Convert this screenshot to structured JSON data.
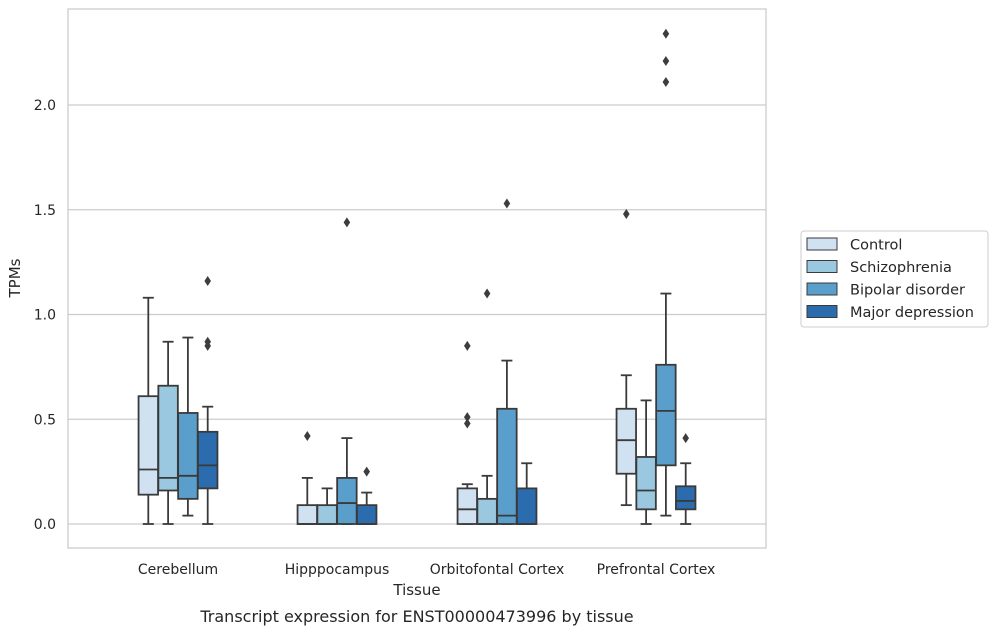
{
  "caption": "Transcript expression for ENST00000473996 by tissue",
  "chart_data": {
    "type": "box",
    "title": "",
    "xlabel": "Tissue",
    "ylabel": "TPMs",
    "ylim": [
      -0.11,
      2.47
    ],
    "yticks": [
      "0.0",
      "0.5",
      "1.0",
      "1.5",
      "2.0"
    ],
    "ytick_values": [
      0.0,
      0.5,
      1.0,
      1.5,
      2.0
    ],
    "grid": "horizontal",
    "legend_position": "right",
    "categories": [
      "Cerebellum",
      "Hipppocampus",
      "Orbitofontal Cortex",
      "Prefrontal Cortex"
    ],
    "series": [
      {
        "name": "Control",
        "color": "#d0e2f2",
        "boxes": [
          {
            "whislo": 0.0,
            "q1": 0.14,
            "med": 0.26,
            "q3": 0.61,
            "whishi": 1.08,
            "fliers": []
          },
          {
            "whislo": 0.0,
            "q1": 0.0,
            "med": 0.0,
            "q3": 0.09,
            "whishi": 0.22,
            "fliers": [
              0.42
            ]
          },
          {
            "whislo": 0.0,
            "q1": 0.0,
            "med": 0.07,
            "q3": 0.17,
            "whishi": 0.19,
            "fliers": [
              0.48,
              0.51,
              0.85
            ]
          },
          {
            "whislo": 0.09,
            "q1": 0.24,
            "med": 0.4,
            "q3": 0.55,
            "whishi": 0.71,
            "fliers": [
              1.48
            ]
          }
        ]
      },
      {
        "name": "Schizophrenia",
        "color": "#9ac8e0",
        "boxes": [
          {
            "whislo": 0.0,
            "q1": 0.16,
            "med": 0.22,
            "q3": 0.66,
            "whishi": 0.87,
            "fliers": []
          },
          {
            "whislo": 0.0,
            "q1": 0.0,
            "med": 0.0,
            "q3": 0.09,
            "whishi": 0.17,
            "fliers": []
          },
          {
            "whislo": 0.0,
            "q1": 0.0,
            "med": 0.0,
            "q3": 0.12,
            "whishi": 0.23,
            "fliers": [
              1.1
            ]
          },
          {
            "whislo": 0.0,
            "q1": 0.07,
            "med": 0.16,
            "q3": 0.32,
            "whishi": 0.59,
            "fliers": []
          }
        ]
      },
      {
        "name": "Bipolar disorder",
        "color": "#5a9fcb",
        "boxes": [
          {
            "whislo": 0.04,
            "q1": 0.12,
            "med": 0.23,
            "q3": 0.53,
            "whishi": 0.89,
            "fliers": []
          },
          {
            "whislo": 0.0,
            "q1": 0.0,
            "med": 0.1,
            "q3": 0.22,
            "whishi": 0.41,
            "fliers": [
              1.44
            ]
          },
          {
            "whislo": 0.0,
            "q1": 0.0,
            "med": 0.04,
            "q3": 0.55,
            "whishi": 0.78,
            "fliers": [
              1.53
            ]
          },
          {
            "whislo": 0.04,
            "q1": 0.28,
            "med": 0.54,
            "q3": 0.76,
            "whishi": 1.1,
            "fliers": [
              2.11,
              2.21,
              2.34
            ]
          }
        ]
      },
      {
        "name": "Major depression",
        "color": "#2b6cae",
        "boxes": [
          {
            "whislo": 0.0,
            "q1": 0.17,
            "med": 0.28,
            "q3": 0.44,
            "whishi": 0.56,
            "fliers": [
              0.85,
              0.87,
              1.16
            ]
          },
          {
            "whislo": 0.0,
            "q1": 0.0,
            "med": 0.0,
            "q3": 0.09,
            "whishi": 0.15,
            "fliers": [
              0.25
            ]
          },
          {
            "whislo": 0.0,
            "q1": 0.0,
            "med": 0.0,
            "q3": 0.17,
            "whishi": 0.29,
            "fliers": []
          },
          {
            "whislo": 0.0,
            "q1": 0.07,
            "med": 0.11,
            "q3": 0.18,
            "whishi": 0.29,
            "fliers": [
              0.41
            ]
          }
        ]
      }
    ]
  }
}
